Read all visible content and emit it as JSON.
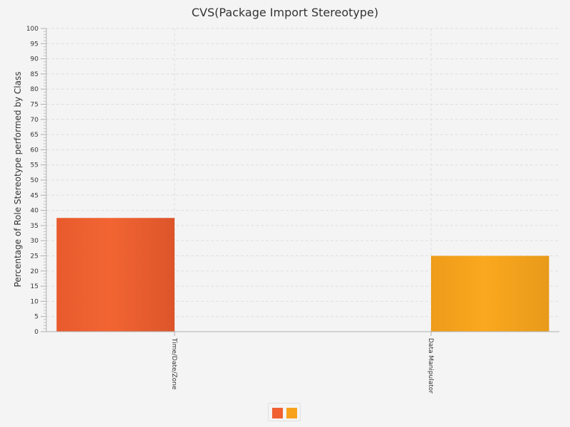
{
  "chart_data": {
    "type": "bar",
    "title": "CVS(Package Import Stereotype)",
    "xlabel": "",
    "ylabel": "Percentage of Role Stereotype performed by Class",
    "categories": [
      "Time/Date/Zone",
      "Data Manipulator"
    ],
    "series": [
      {
        "values": [
          37.5,
          0
        ],
        "color": "#f06030"
      },
      {
        "values": [
          0,
          25
        ],
        "color": "#f8a21c"
      }
    ],
    "ylim": [
      0,
      100
    ],
    "yticks": [
      0,
      5,
      10,
      15,
      20,
      25,
      30,
      35,
      40,
      45,
      50,
      55,
      60,
      65,
      70,
      75,
      80,
      85,
      90,
      95,
      100
    ],
    "grid": true,
    "legend": "bottom-center"
  }
}
